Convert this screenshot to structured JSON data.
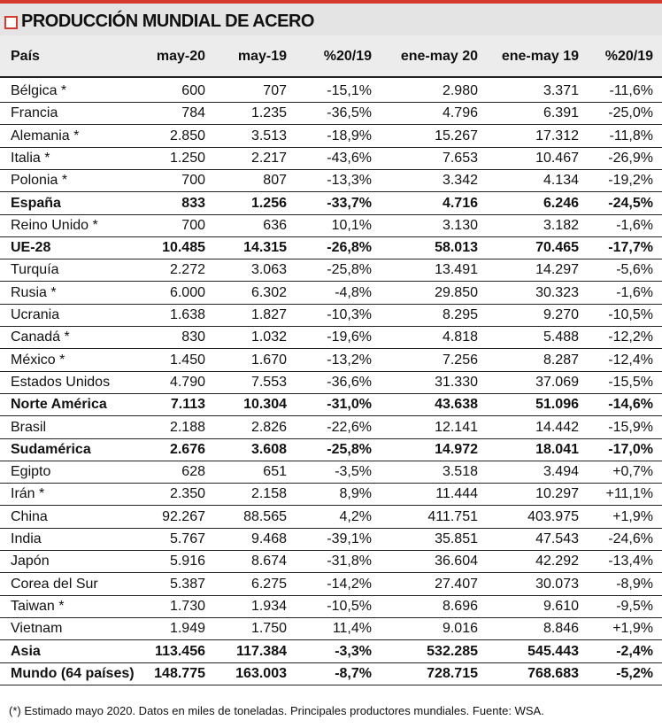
{
  "header": {
    "title": "PRODUCCIÓN MUNDIAL DE ACERO"
  },
  "table": {
    "columns": [
      "País",
      "may-20",
      "may-19",
      "%20/19",
      "ene-may 20",
      "ene-may 19",
      "%20/19"
    ],
    "rows": [
      {
        "cells": [
          "Bélgica *",
          "600",
          "707",
          "-15,1%",
          "2.980",
          "3.371",
          "-11,6%"
        ]
      },
      {
        "cells": [
          "Francia",
          "784",
          "1.235",
          "-36,5%",
          "4.796",
          "6.391",
          "-25,0%"
        ]
      },
      {
        "cells": [
          "Alemania *",
          "2.850",
          "3.513",
          "-18,9%",
          "15.267",
          "17.312",
          "-11,8%"
        ]
      },
      {
        "cells": [
          "Italia *",
          "1.250",
          "2.217",
          "-43,6%",
          "7.653",
          "10.467",
          "-26,9%"
        ]
      },
      {
        "cells": [
          "Polonia *",
          "700",
          "807",
          "-13,3%",
          "3.342",
          "4.134",
          "-19,2%"
        ]
      },
      {
        "cells": [
          "España",
          "833",
          "1.256",
          "-33,7%",
          "4.716",
          "6.246",
          "-24,5%"
        ],
        "bold": true
      },
      {
        "cells": [
          "Reino Unido *",
          "700",
          "636",
          "10,1%",
          "3.130",
          "3.182",
          "-1,6%"
        ]
      },
      {
        "cells": [
          "UE-28",
          "10.485",
          "14.315",
          "-26,8%",
          "58.013",
          "70.465",
          "-17,7%"
        ],
        "bold": true
      },
      {
        "cells": [
          "Turquía",
          "2.272",
          "3.063",
          "-25,8%",
          "13.491",
          "14.297",
          "-5,6%"
        ]
      },
      {
        "cells": [
          "Rusia *",
          "6.000",
          "6.302",
          "-4,8%",
          "29.850",
          "30.323",
          "-1,6%"
        ]
      },
      {
        "cells": [
          "Ucrania",
          "1.638",
          "1.827",
          "-10,3%",
          "8.295",
          "9.270",
          "-10,5%"
        ]
      },
      {
        "cells": [
          "Canadá *",
          "830",
          "1.032",
          "-19,6%",
          "4.818",
          "5.488",
          "-12,2%"
        ]
      },
      {
        "cells": [
          "México *",
          "1.450",
          "1.670",
          "-13,2%",
          "7.256",
          "8.287",
          "-12,4%"
        ]
      },
      {
        "cells": [
          "Estados Unidos",
          "4.790",
          "7.553",
          "-36,6%",
          "31.330",
          "37.069",
          "-15,5%"
        ]
      },
      {
        "cells": [
          "Norte América",
          "7.113",
          "10.304",
          "-31,0%",
          "43.638",
          "51.096",
          "-14,6%"
        ],
        "bold": true
      },
      {
        "cells": [
          "Brasil",
          "2.188",
          "2.826",
          "-22,6%",
          "12.141",
          "14.442",
          "-15,9%"
        ]
      },
      {
        "cells": [
          "Sudamérica",
          "2.676",
          "3.608",
          "-25,8%",
          "14.972",
          "18.041",
          "-17,0%"
        ],
        "bold": true
      },
      {
        "cells": [
          "Egipto",
          "628",
          "651",
          "-3,5%",
          "3.518",
          "3.494",
          "+0,7%"
        ]
      },
      {
        "cells": [
          "Irán *",
          "2.350",
          "2.158",
          "8,9%",
          "11.444",
          "10.297",
          "+11,1%"
        ]
      },
      {
        "cells": [
          "China",
          "92.267",
          "88.565",
          "4,2%",
          "411.751",
          "403.975",
          "+1,9%"
        ]
      },
      {
        "cells": [
          "India",
          "5.767",
          "9.468",
          "-39,1%",
          "35.851",
          "47.543",
          "-24,6%"
        ]
      },
      {
        "cells": [
          "Japón",
          "5.916",
          "8.674",
          "-31,8%",
          "36.604",
          "42.292",
          "-13,4%"
        ]
      },
      {
        "cells": [
          "Corea del Sur",
          "5.387",
          "6.275",
          "-14,2%",
          "27.407",
          "30.073",
          "-8,9%"
        ]
      },
      {
        "cells": [
          "Taiwan *",
          "1.730",
          "1.934",
          "-10,5%",
          "8.696",
          "9.610",
          "-9,5%"
        ]
      },
      {
        "cells": [
          "Vietnam",
          "1.949",
          "1.750",
          "11,4%",
          "9.016",
          "8.846",
          "+1,9%"
        ]
      },
      {
        "cells": [
          "Asia",
          "113.456",
          "117.384",
          "-3,3%",
          "532.285",
          "545.443",
          "-2,4%"
        ],
        "bold": true
      },
      {
        "cells": [
          "Mundo (64 países)",
          "148.775",
          "163.003",
          "-8,7%",
          "728.715",
          "768.683",
          "-5,2%"
        ],
        "bold": true
      }
    ]
  },
  "footnote": "(*) Estimado mayo 2020. Datos en miles de toneladas. Principales productores mundiales. Fuente: WSA."
}
